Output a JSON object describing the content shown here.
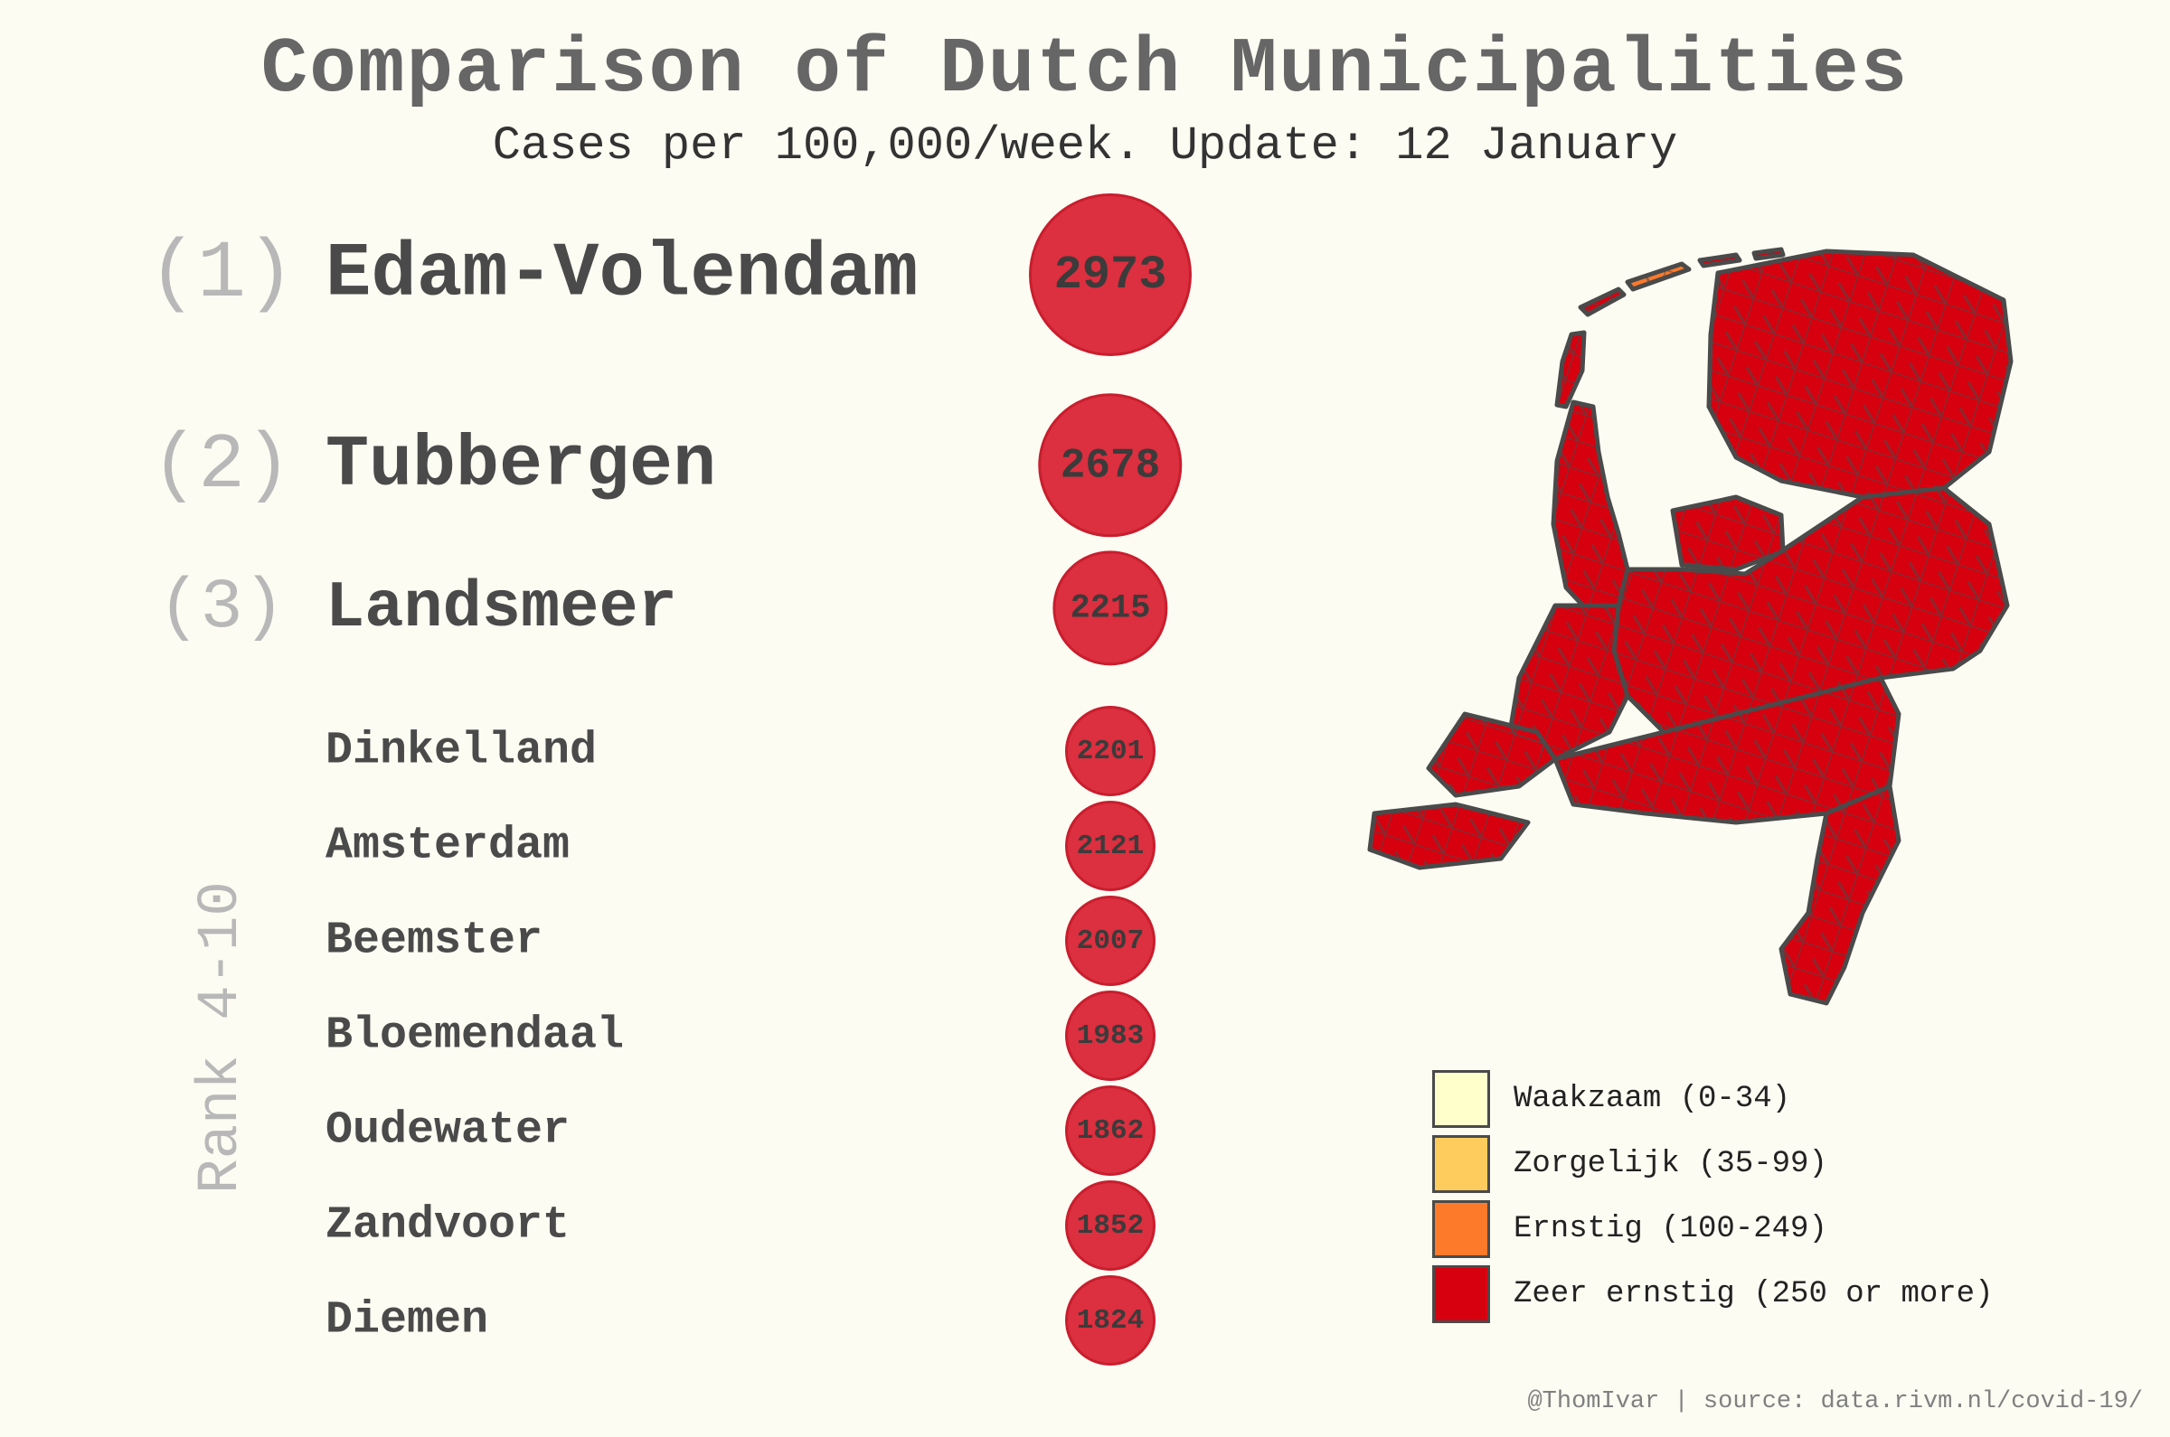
{
  "header": {
    "title": "Comparison of Dutch Municipalities",
    "subtitle": "Cases per 100,000/week. Update: 12 January"
  },
  "chart_data": {
    "type": "bubble-ranking",
    "title": "Comparison of Dutch Municipalities",
    "subtitle": "Cases per 100,000/week. Update: 12 January",
    "rank_group_label": "Rank 4-10",
    "series": [
      {
        "rank_label": "(1)",
        "name": "Edam-Volendam",
        "value": 2973
      },
      {
        "rank_label": "(2)",
        "name": "Tubbergen",
        "value": 2678
      },
      {
        "rank_label": "(3)",
        "name": "Landsmeer",
        "value": 2215
      },
      {
        "rank_label": "",
        "name": "Dinkelland",
        "value": 2201
      },
      {
        "rank_label": "",
        "name": "Amsterdam",
        "value": 2121
      },
      {
        "rank_label": "",
        "name": "Beemster",
        "value": 2007
      },
      {
        "rank_label": "",
        "name": "Bloemendaal",
        "value": 1983
      },
      {
        "rank_label": "",
        "name": "Oudewater",
        "value": 1862
      },
      {
        "rank_label": "",
        "name": "Zandvoort",
        "value": 1852
      },
      {
        "rank_label": "",
        "name": "Diemen",
        "value": 1824
      }
    ],
    "bubble_color": "#dc2f3f",
    "map": {
      "type": "choropleth",
      "fill_color": "#d7000f",
      "border_color": "#4a4a4a"
    },
    "legend": [
      {
        "label": "Waakzaam (0-34)",
        "color": "#ffffcc"
      },
      {
        "label": "Zorgelijk (35-99)",
        "color": "#fecc5c"
      },
      {
        "label": "Ernstig (100-249)",
        "color": "#fd7a2b"
      },
      {
        "label": "Zeer ernstig (250 or more)",
        "color": "#d7000f"
      }
    ]
  },
  "footer": {
    "source": "@ThomIvar | source: data.rivm.nl/covid-19/"
  }
}
